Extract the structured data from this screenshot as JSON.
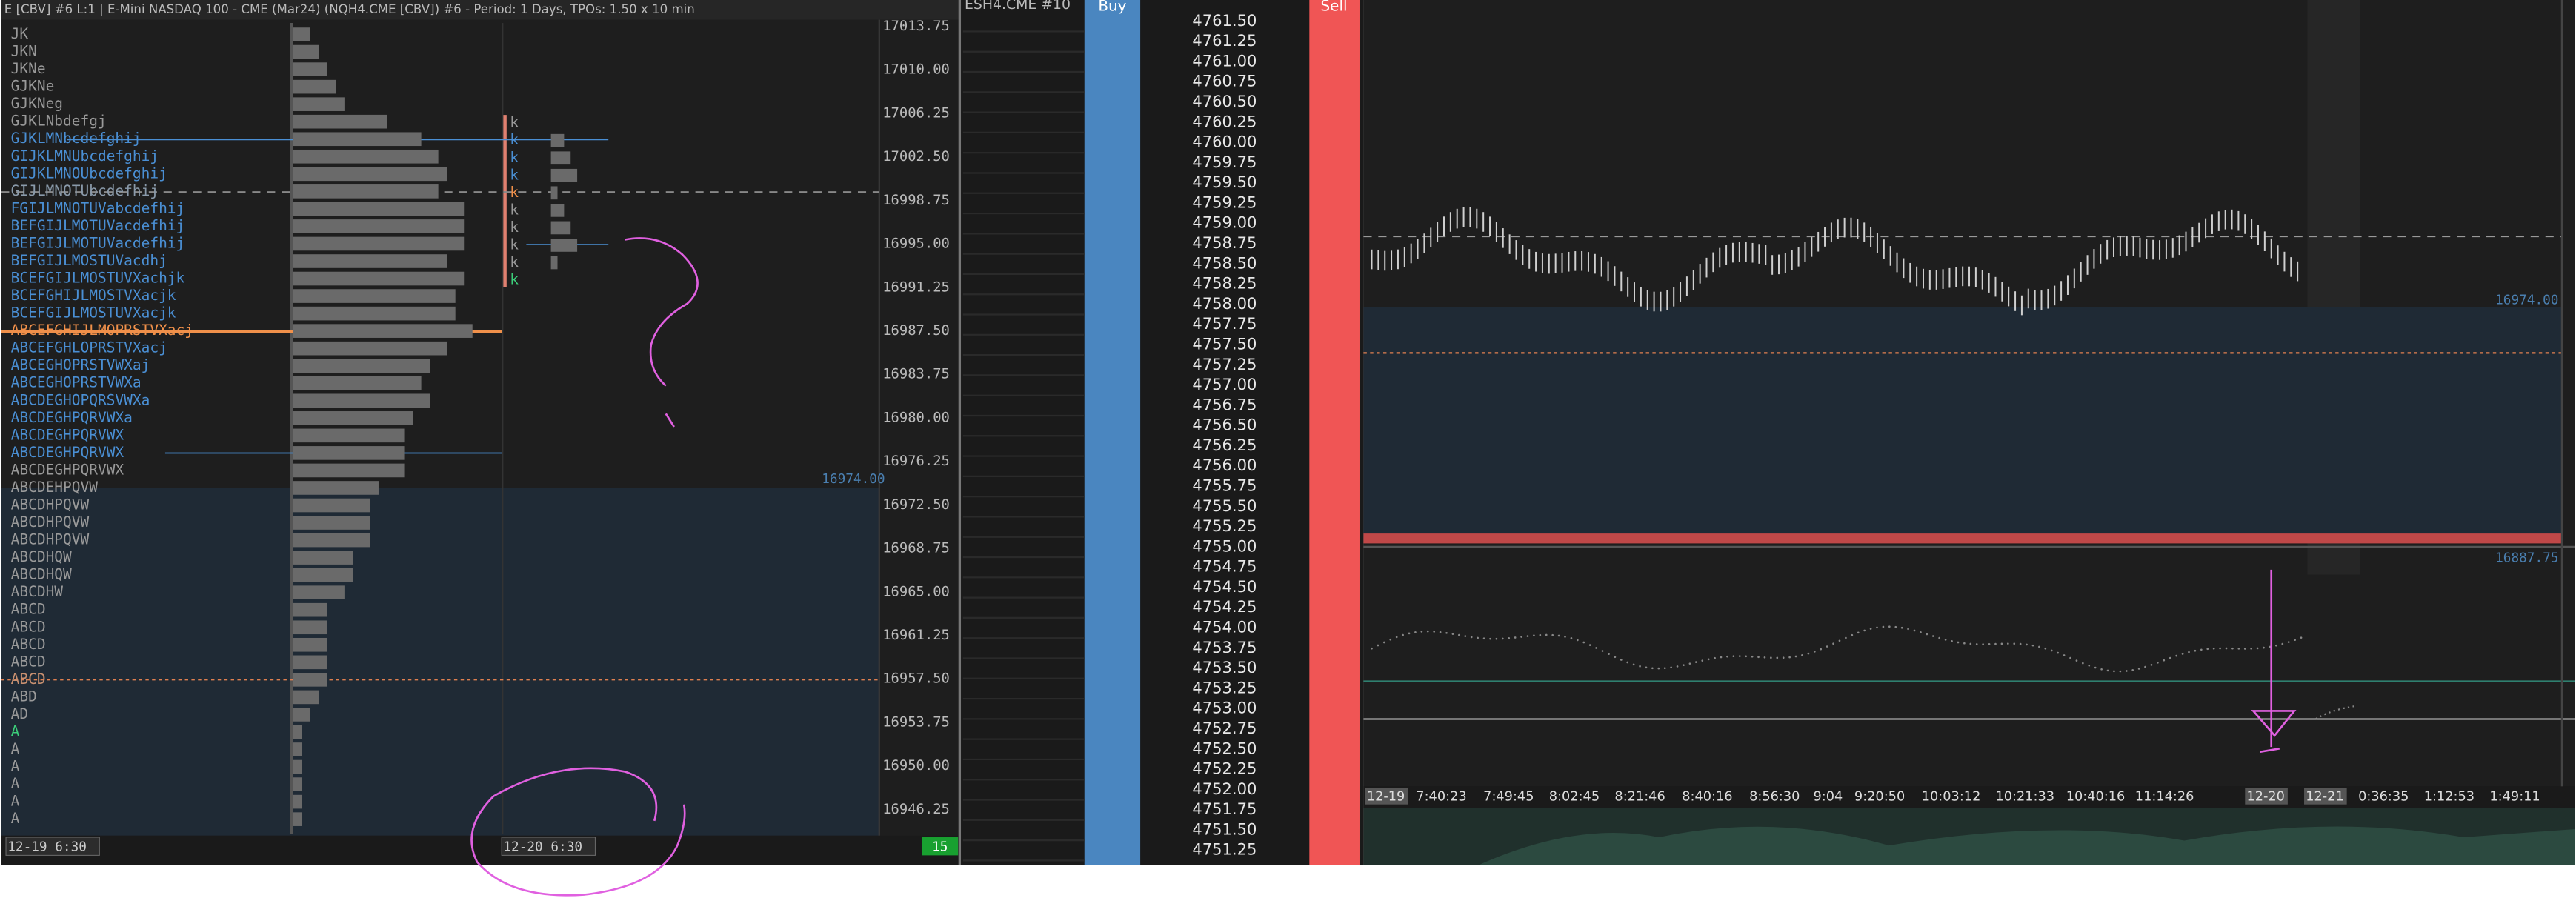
{
  "tpo_window": {
    "title": "E [CBV]  #6 L:1 | E-Mini NASDAQ 100 - CME (Mar24)  (NQH4.CME [CBV])  #6 - Period: 1 Days, TPOs: 1.50 x 10 min",
    "rows": [
      {
        "label": "JK",
        "color": "#9a9a9a"
      },
      {
        "label": "JKN",
        "color": "#9a9a9a"
      },
      {
        "label": "JKNe",
        "color": "#9a9a9a"
      },
      {
        "label": "GJKNe",
        "color": "#9a9a9a"
      },
      {
        "label": "GJKNeg",
        "color": "#9a9a9a"
      },
      {
        "label": "GJKLNbdefgj",
        "color": "#9a9a9a"
      },
      {
        "label": "GJKLMNbcdefghij",
        "color": "#4a8fd4"
      },
      {
        "label": "GIJKLMNUbcdefghij",
        "color": "#4a8fd4"
      },
      {
        "label": "GIJKLMNOUbcdefghij",
        "color": "#4a8fd4"
      },
      {
        "label": "GIJLMNOTUbcdefhij",
        "color": "#8a9aaa"
      },
      {
        "label": "FGIJLMNOTUVabcdefhij",
        "color": "#4a8fd4"
      },
      {
        "label": "BEFGIJLMOTUVacdefhij",
        "color": "#4a8fd4"
      },
      {
        "label": "BEFGIJLMOTUVacdefhij",
        "color": "#4a8fd4"
      },
      {
        "label": "BEFGIJLMOSTUVacdhj",
        "color": "#4a8fd4"
      },
      {
        "label": "BCEFGIJLMOSTUVXachjk",
        "color": "#4a8fd4"
      },
      {
        "label": "BCEFGHIJLMOSTVXacjk",
        "color": "#4a8fd4"
      },
      {
        "label": "BCEFGIJLMOSTUVXacjk",
        "color": "#4a8fd4"
      },
      {
        "label": "ABCEFGHIJLMOPRSTVXacj",
        "color": "#f0904a"
      },
      {
        "label": "ABCEFGHLOPRSTVXacj",
        "color": "#4a8fd4"
      },
      {
        "label": "ABCEGHOPRSTVWXaj",
        "color": "#4a8fd4"
      },
      {
        "label": "ABCEGHOPRSTVWXa",
        "color": "#4a8fd4"
      },
      {
        "label": "ABCDEGHOPQRSVWXa",
        "color": "#4a8fd4"
      },
      {
        "label": "ABCDEGHPQRVWXa",
        "color": "#4a8fd4"
      },
      {
        "label": "ABCDEGHPQRVWX",
        "color": "#4a8fd4"
      },
      {
        "label": "ABCDEGHPQRVWX",
        "color": "#4a8fd4"
      },
      {
        "label": "ABCDEGHPQRVWX",
        "color": "#9a9a9a"
      },
      {
        "label": "ABCDEHPQVW",
        "color": "#9a9a9a"
      },
      {
        "label": "ABCDHPQVW",
        "color": "#9a9a9a"
      },
      {
        "label": "ABCDHPQVW",
        "color": "#9a9a9a"
      },
      {
        "label": "ABCDHPQVW",
        "color": "#9a9a9a"
      },
      {
        "label": "ABCDHQW",
        "color": "#9a9a9a"
      },
      {
        "label": "ABCDHQW",
        "color": "#9a9a9a"
      },
      {
        "label": "ABCDHW",
        "color": "#9a9a9a"
      },
      {
        "label": "ABCD",
        "color": "#9a9a9a"
      },
      {
        "label": "ABCD",
        "color": "#9a9a9a"
      },
      {
        "label": "ABCD",
        "color": "#9a9a9a"
      },
      {
        "label": "ABCD",
        "color": "#9a9a9a"
      },
      {
        "label": "ABCD",
        "color": "#c89070"
      },
      {
        "label": "ABD",
        "color": "#9a9a9a"
      },
      {
        "label": "AD",
        "color": "#9a9a9a"
      },
      {
        "label": "A",
        "color": "#3ccf7a"
      },
      {
        "label": "A",
        "color": "#9a9a9a"
      },
      {
        "label": "A",
        "color": "#9a9a9a"
      },
      {
        "label": "A",
        "color": "#9a9a9a"
      },
      {
        "label": "A",
        "color": "#9a9a9a"
      },
      {
        "label": "A",
        "color": "#9a9a9a"
      }
    ],
    "profile2": [
      {
        "label": "k",
        "color": "#9a9a9a"
      },
      {
        "label": "k",
        "color": "#4a8fd4"
      },
      {
        "label": "k",
        "color": "#4a8fd4"
      },
      {
        "label": "k",
        "color": "#4a8fd4"
      },
      {
        "label": "k",
        "color": "#f0904a"
      },
      {
        "label": "k",
        "color": "#9a9a9a"
      },
      {
        "label": "k",
        "color": "#9a9a9a"
      },
      {
        "label": "k",
        "color": "#9a9a9a"
      },
      {
        "label": "k",
        "color": "#9a9a9a"
      },
      {
        "label": "k",
        "color": "#3ccf7a"
      }
    ],
    "price_axis": [
      "17013.75",
      "17010.00",
      "17006.25",
      "17002.50",
      "16998.75",
      "16995.00",
      "16991.25",
      "16987.50",
      "16983.75",
      "16980.00",
      "16976.25",
      "16972.50",
      "16968.75",
      "16965.00",
      "16961.25",
      "16957.50",
      "16953.75",
      "16950.00",
      "16946.25"
    ],
    "value_label": "16974.00",
    "dates": [
      "12-19   6:30",
      "12-20   6:30"
    ],
    "badge": "15"
  },
  "dom": {
    "header": "ESH4.CME  #10",
    "buy": "Buy",
    "sell": "Sell",
    "prices": [
      "4761.50",
      "4761.25",
      "4761.00",
      "4760.75",
      "4760.50",
      "4760.25",
      "4760.00",
      "4759.75",
      "4759.50",
      "4759.25",
      "4759.00",
      "4758.75",
      "4758.50",
      "4758.25",
      "4758.00",
      "4757.75",
      "4757.50",
      "4757.25",
      "4757.00",
      "4756.75",
      "4756.50",
      "4756.25",
      "4756.00",
      "4755.75",
      "4755.50",
      "4755.25",
      "4755.00",
      "4754.75",
      "4754.50",
      "4754.25",
      "4754.00",
      "4753.75",
      "4753.50",
      "4753.25",
      "4753.00",
      "4752.75",
      "4752.50",
      "4752.25",
      "4752.00",
      "4751.75",
      "4751.50",
      "4751.25"
    ]
  },
  "chart": {
    "price_labels": [
      "16974.00",
      "16887.75"
    ],
    "time_axis": [
      {
        "label": "12-19",
        "boxed": true
      },
      {
        "label": "7:40:23",
        "boxed": false
      },
      {
        "label": "7:49:45",
        "boxed": false
      },
      {
        "label": "8:02:45",
        "boxed": false
      },
      {
        "label": "8:21:46",
        "boxed": false
      },
      {
        "label": "8:40:16",
        "boxed": false
      },
      {
        "label": "8:56:30",
        "boxed": false
      },
      {
        "label": "9:04",
        "boxed": false
      },
      {
        "label": "9:20:50",
        "boxed": false
      },
      {
        "label": "10:03:12",
        "boxed": false
      },
      {
        "label": "10:21:33",
        "boxed": false
      },
      {
        "label": "10:40:16",
        "boxed": false
      },
      {
        "label": "11:14:26",
        "boxed": false
      },
      {
        "label": "12-20",
        "boxed": true
      },
      {
        "label": "12-21",
        "boxed": true
      },
      {
        "label": "0:36:35",
        "boxed": false
      },
      {
        "label": "1:12:53",
        "boxed": false
      },
      {
        "label": "1:49:11",
        "boxed": false
      }
    ]
  }
}
